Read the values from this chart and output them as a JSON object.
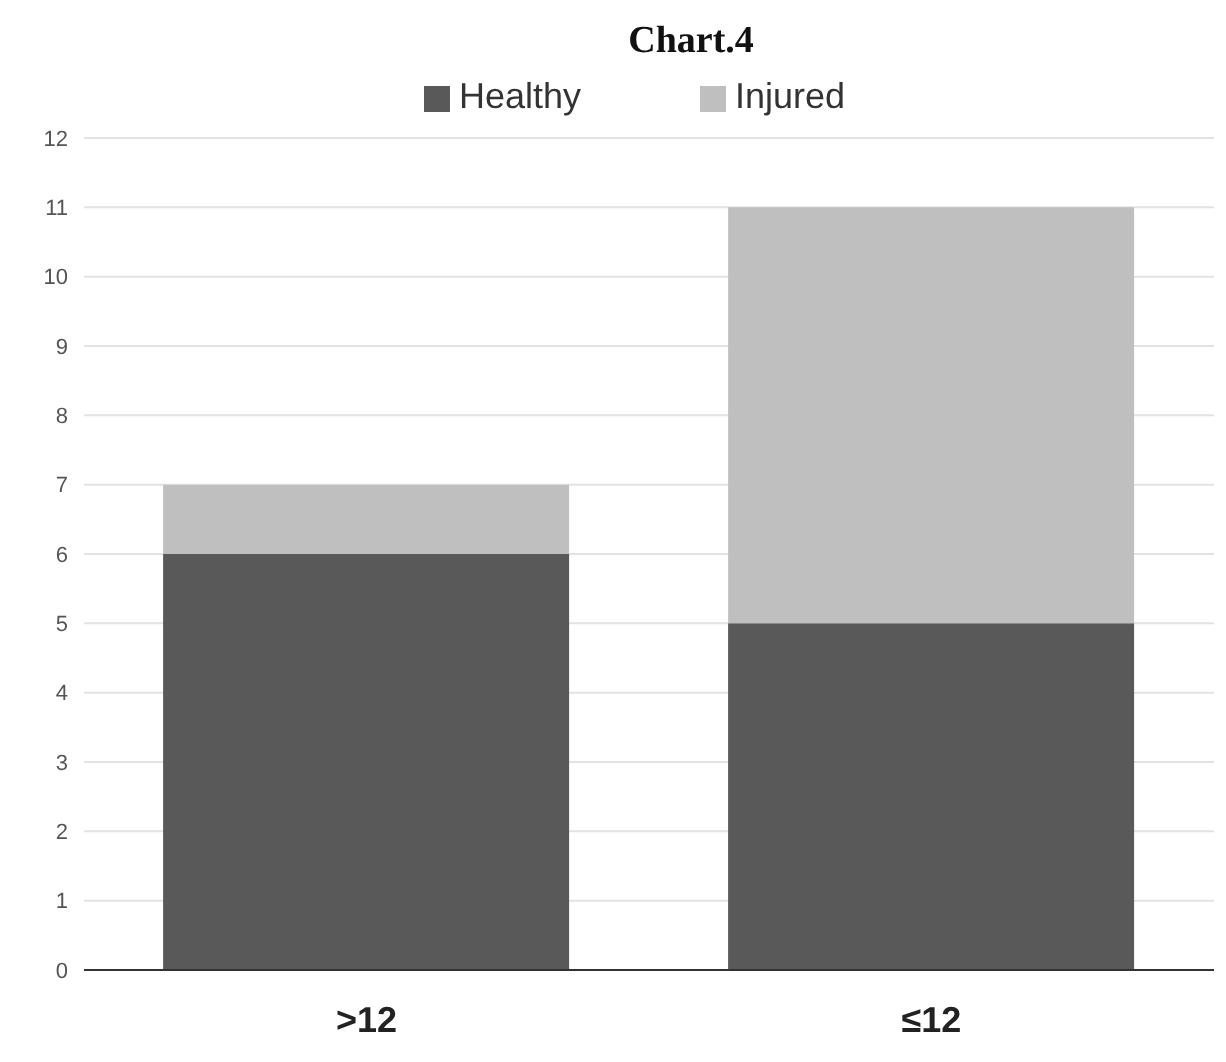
{
  "chart_data": {
    "type": "bar",
    "title": "Chart.4",
    "categories": [
      ">12",
      "≤12"
    ],
    "series": [
      {
        "name": "Healthy",
        "color": "#595959",
        "values": [
          6,
          5
        ]
      },
      {
        "name": "Injured",
        "color": "#bfbfbf",
        "values": [
          1,
          6
        ]
      }
    ],
    "stacked": true,
    "ylim": [
      0,
      12
    ],
    "yticks": [
      0,
      1,
      2,
      3,
      4,
      5,
      6,
      7,
      8,
      9,
      10,
      11,
      12
    ],
    "grid": "y",
    "legend": "top"
  }
}
